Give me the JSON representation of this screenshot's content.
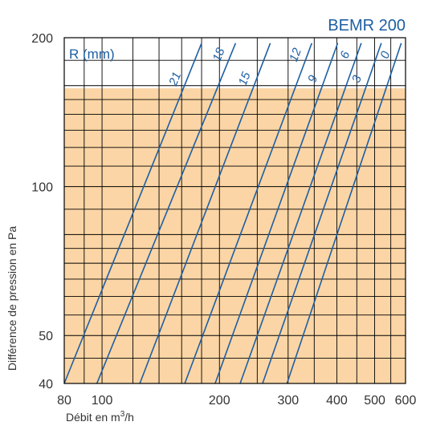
{
  "chart_data": {
    "type": "line",
    "title": "BEMR 200",
    "xlabel_prefix": "Débit en m",
    "xlabel_sup": "3",
    "xlabel_suffix": "/h",
    "ylabel": "Différence de pression en Pa",
    "legend_label": "R (mm)",
    "x_scale": "log",
    "y_scale": "log",
    "xlim": [
      80,
      600
    ],
    "ylim": [
      40,
      200
    ],
    "x_ticks": [
      "80",
      "100",
      "200",
      "300",
      "400",
      "500",
      "600"
    ],
    "y_ticks": [
      "40",
      "50",
      "100",
      "200"
    ],
    "shaded_range": {
      "ymin": 40,
      "ymax": 158,
      "color": "#fbd5a5"
    },
    "colors": {
      "curve": "#1d5fa3",
      "grid": "#000000",
      "shade": "#fbd5a5",
      "title": "#1d5fa3"
    },
    "series": [
      {
        "name": "21",
        "x": [
          80,
          180
        ],
        "y": [
          40,
          195
        ]
      },
      {
        "name": "18",
        "x": [
          97,
          220
        ],
        "y": [
          40,
          195
        ]
      },
      {
        "name": "15",
        "x": [
          125,
          270
        ],
        "y": [
          40,
          195
        ]
      },
      {
        "name": "12",
        "x": [
          163,
          345
        ],
        "y": [
          40,
          195
        ]
      },
      {
        "name": "9",
        "x": [
          195,
          402
        ],
        "y": [
          40,
          195
        ]
      },
      {
        "name": "6",
        "x": [
          226,
          462
        ],
        "y": [
          40,
          195
        ]
      },
      {
        "name": "3",
        "x": [
          258,
          520
        ],
        "y": [
          40,
          195
        ]
      },
      {
        "name": "0",
        "x": [
          298,
          585
        ],
        "y": [
          40,
          195
        ]
      }
    ]
  }
}
